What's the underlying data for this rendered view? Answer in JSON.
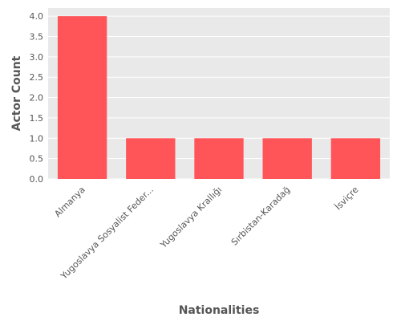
{
  "chart_data": {
    "type": "bar",
    "categories": [
      "Almanya",
      "Yugoslavya Sosyalist Feder...",
      "Yugoslavya Krallığı",
      "Sırbistan-Karadağ",
      "İsviçre"
    ],
    "values": [
      4,
      1,
      1,
      1,
      1
    ],
    "xlabel": "Nationalities",
    "ylabel": "Actor Count",
    "ylim": [
      0,
      4.2
    ],
    "yticks": [
      "0.0",
      "0.5",
      "1.0",
      "1.5",
      "2.0",
      "2.5",
      "3.0",
      "3.5",
      "4.0"
    ],
    "grid": true,
    "bar_color": "#ff5559",
    "plot_background": "#e9e9e9"
  }
}
